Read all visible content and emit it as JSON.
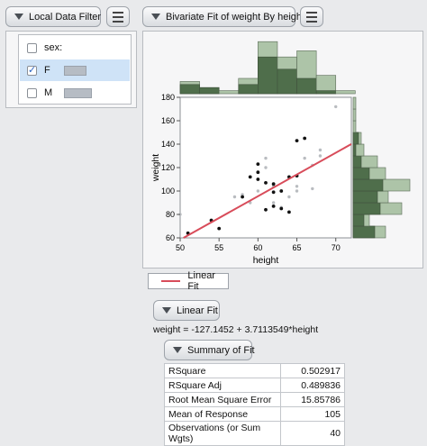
{
  "filter": {
    "title": "Local Data Filter",
    "column_label": "sex:",
    "items": [
      {
        "label": "F",
        "checked": true,
        "fraction": 0.55
      },
      {
        "label": "M",
        "checked": false,
        "fraction": 0.6
      }
    ]
  },
  "bivariate": {
    "title": "Bivariate Fit of weight By height",
    "legend_label": "Linear Fit",
    "fit_button": "Linear Fit",
    "equation": "weight = -127.1452 + 3.7113549*height",
    "summary_button": "Summary of Fit",
    "summary_rows": [
      {
        "label": "RSquare",
        "value": "0.502917"
      },
      {
        "label": "RSquare Adj",
        "value": "0.489836"
      },
      {
        "label": "Root Mean Square Error",
        "value": "15.85786"
      },
      {
        "label": "Mean of Response",
        "value": "105"
      },
      {
        "label": "Observations (or Sum Wgts)",
        "value": "40"
      }
    ]
  },
  "chart_data": {
    "type": "scatter",
    "xlabel": "height",
    "ylabel": "weight",
    "xlim": [
      50,
      72
    ],
    "ylim": [
      60,
      180
    ],
    "x_ticks": [
      "50",
      "55",
      "60",
      "65",
      "70"
    ],
    "y_ticks": [
      "60",
      "80",
      "100",
      "120",
      "140",
      "160",
      "180"
    ],
    "fit": {
      "intercept": -127.1452,
      "slope": 3.7113549,
      "color": "#d84c5a"
    },
    "series": [
      {
        "name": "F",
        "color": "#111111",
        "points": [
          [
            51,
            64
          ],
          [
            54,
            75
          ],
          [
            55,
            68
          ],
          [
            58,
            95
          ],
          [
            59,
            112
          ],
          [
            60,
            116
          ],
          [
            60,
            123
          ],
          [
            60,
            110
          ],
          [
            61,
            107
          ],
          [
            61,
            84
          ],
          [
            62,
            99
          ],
          [
            62,
            87
          ],
          [
            62,
            106
          ],
          [
            63,
            100
          ],
          [
            63,
            85
          ],
          [
            64,
            112
          ],
          [
            65,
            113
          ],
          [
            65,
            143
          ],
          [
            66,
            145
          ],
          [
            64,
            82
          ]
        ]
      },
      {
        "name": "M",
        "color": "#b9bcc0",
        "points": [
          [
            50,
            80
          ],
          [
            57,
            95
          ],
          [
            58,
            97
          ],
          [
            59,
            90
          ],
          [
            60,
            100
          ],
          [
            61,
            120
          ],
          [
            61,
            128
          ],
          [
            62,
            90
          ],
          [
            62,
            104
          ],
          [
            63,
            100
          ],
          [
            63,
            86
          ],
          [
            64,
            95
          ],
          [
            65,
            100
          ],
          [
            65,
            104
          ],
          [
            66,
            128
          ],
          [
            67,
            122
          ],
          [
            67,
            102
          ],
          [
            68,
            130
          ],
          [
            68,
            135
          ],
          [
            70,
            172
          ]
        ]
      }
    ],
    "x_hist": {
      "colors": [
        "#4f6e4b",
        "#adc4a8"
      ],
      "bins": [
        {
          "x0": 50,
          "x1": 52.5,
          "f": 3,
          "all": 4
        },
        {
          "x0": 52.5,
          "x1": 55,
          "f": 2,
          "all": 2
        },
        {
          "x0": 55,
          "x1": 57.5,
          "f": 0,
          "all": 1
        },
        {
          "x0": 57.5,
          "x1": 60,
          "f": 3,
          "all": 5
        },
        {
          "x0": 60,
          "x1": 62.5,
          "f": 12,
          "all": 17
        },
        {
          "x0": 62.5,
          "x1": 65,
          "f": 8,
          "all": 12
        },
        {
          "x0": 65,
          "x1": 67.5,
          "f": 5,
          "all": 14
        },
        {
          "x0": 67.5,
          "x1": 70,
          "f": 1,
          "all": 6
        },
        {
          "x0": 70,
          "x1": 72.5,
          "f": 0,
          "all": 1
        }
      ]
    },
    "y_hist": {
      "bins": [
        {
          "y0": 60,
          "y1": 70,
          "f": 8,
          "all": 12
        },
        {
          "y0": 70,
          "y1": 80,
          "f": 4,
          "all": 6
        },
        {
          "y0": 80,
          "y1": 90,
          "f": 10,
          "all": 18
        },
        {
          "y0": 90,
          "y1": 100,
          "f": 9,
          "all": 13
        },
        {
          "y0": 100,
          "y1": 110,
          "f": 11,
          "all": 21
        },
        {
          "y0": 110,
          "y1": 120,
          "f": 6,
          "all": 12
        },
        {
          "y0": 120,
          "y1": 130,
          "f": 3,
          "all": 9
        },
        {
          "y0": 130,
          "y1": 140,
          "f": 1,
          "all": 4
        },
        {
          "y0": 140,
          "y1": 150,
          "f": 2,
          "all": 3
        },
        {
          "y0": 150,
          "y1": 160,
          "f": 0,
          "all": 1
        },
        {
          "y0": 160,
          "y1": 170,
          "f": 0,
          "all": 1
        },
        {
          "y0": 170,
          "y1": 180,
          "f": 0,
          "all": 1
        }
      ]
    }
  }
}
